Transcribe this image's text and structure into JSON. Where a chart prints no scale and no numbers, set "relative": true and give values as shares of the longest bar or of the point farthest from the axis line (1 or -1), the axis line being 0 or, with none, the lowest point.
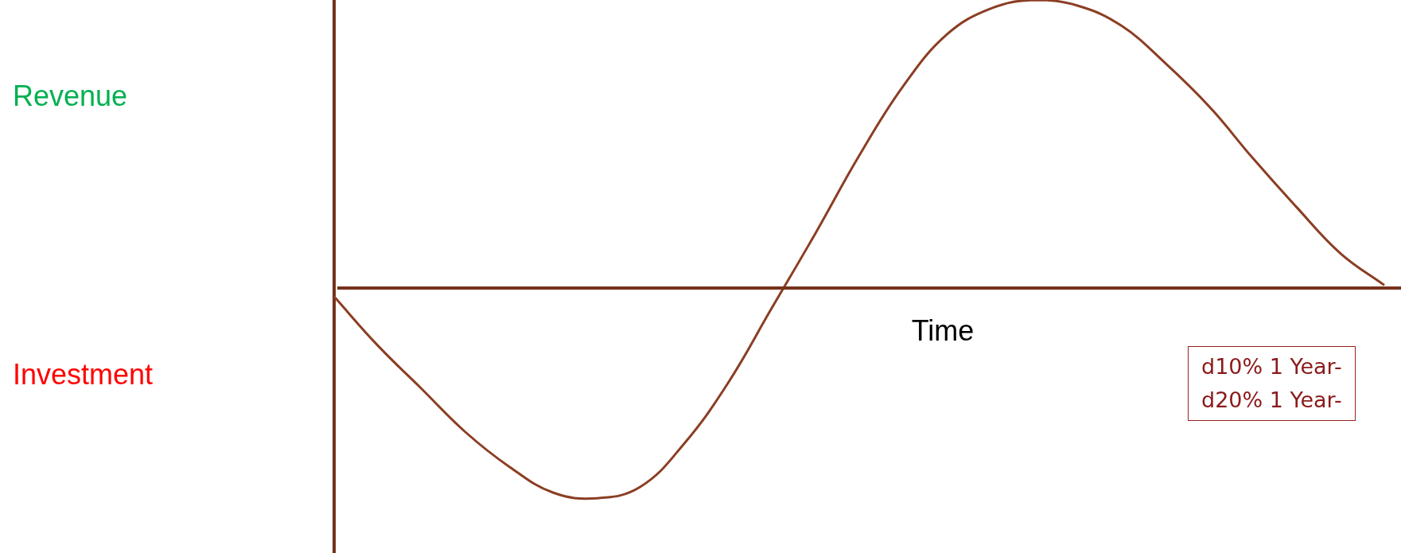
{
  "chart_data": {
    "type": "line",
    "relative": true,
    "xlabel": "Time",
    "marker": "none",
    "categories": [
      null,
      null,
      null,
      null,
      null,
      null,
      null,
      null,
      null,
      null,
      null,
      null,
      null,
      null,
      null,
      null,
      null,
      null,
      null,
      null,
      null,
      null,
      null,
      null,
      null
    ],
    "series": [
      {
        "color": "#8b3e23",
        "values": [
          -0.03,
          -0.2,
          -0.35,
          -0.5,
          -0.62,
          -0.71,
          -0.73,
          -0.69,
          -0.54,
          -0.33,
          -0.07,
          0.19,
          0.46,
          0.7,
          0.88,
          0.97,
          1,
          0.98,
          0.91,
          0.78,
          0.63,
          0.45,
          0.28,
          0.12,
          0.01
        ]
      }
    ],
    "ref_lines": [
      {
        "axis": "y",
        "value": 0,
        "color": "#74321a"
      }
    ],
    "annotations": [
      "Revenue",
      "Investment",
      "d10% 1 Year-",
      "d20% 1 Year-"
    ]
  }
}
